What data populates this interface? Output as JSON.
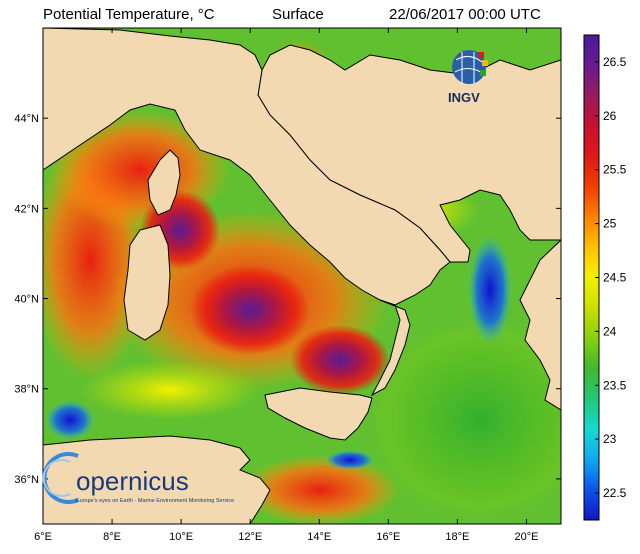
{
  "header": {
    "variable": "Potential Temperature, °C",
    "depth": "Surface",
    "datetime": "22/06/2017 00:00 UTC"
  },
  "map": {
    "lon_range": [
      6,
      21
    ],
    "lat_range": [
      35,
      46
    ],
    "lon_ticks": [
      "6°E",
      "8°E",
      "10°E",
      "12°E",
      "14°E",
      "16°E",
      "18°E",
      "20°E"
    ],
    "lat_ticks": [
      "36°N",
      "38°N",
      "40°N",
      "42°N",
      "44°N"
    ],
    "land_color": "#f3d9b1",
    "coast_color": "#000000"
  },
  "colorbar": {
    "min": 22.25,
    "max": 26.75,
    "labels": [
      "26.5",
      "26",
      "25.5",
      "25",
      "24.5",
      "24",
      "23.5",
      "23",
      "22.5"
    ],
    "colors": [
      "#1414c8",
      "#0a55ea",
      "#12a8f0",
      "#18d8d0",
      "#22c878",
      "#40b830",
      "#88d010",
      "#c8e000",
      "#f4f000",
      "#ffc000",
      "#ff8000",
      "#f04000",
      "#e01818",
      "#c81030",
      "#9a1a60",
      "#6a1a90",
      "#4a1a9a"
    ]
  },
  "logos": {
    "ingv": "INGV",
    "copernicus": "opernicus",
    "copernicus_tagline": "Europe's eyes on Earth · Marine Environment Monitoring Service"
  }
}
